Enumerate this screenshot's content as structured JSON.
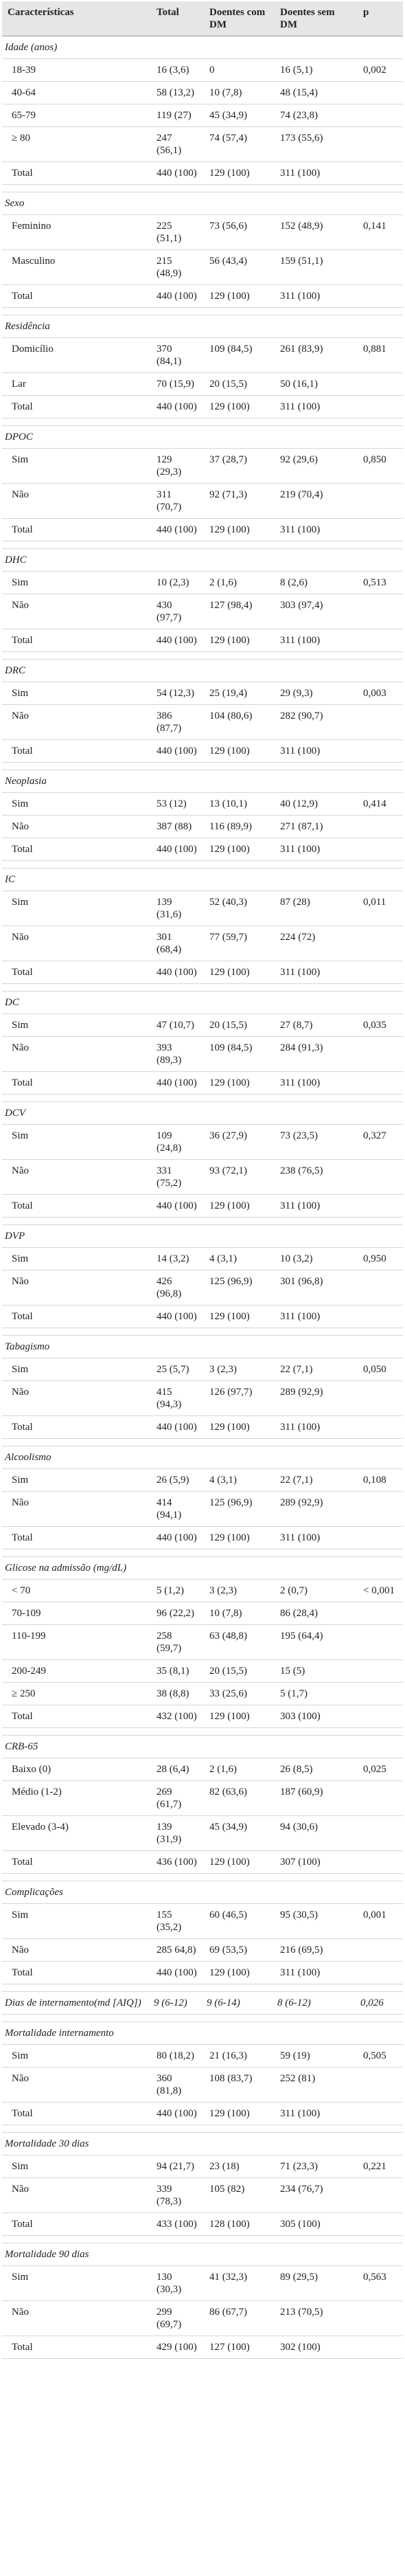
{
  "table": {
    "header": [
      "Características",
      "Total",
      "Doentes com DM",
      "Doentes sem DM",
      "p"
    ],
    "sections": [
      {
        "title": "Idade (anos)",
        "rows": [
          [
            "18-39",
            "16 (3,6)",
            "0",
            "16 (5,1)",
            "0,002"
          ],
          [
            "40-64",
            "58 (13,2)",
            "10 (7,8)",
            "48 (15,4)"
          ],
          [
            "65-79",
            "119 (27)",
            "45 (34,9)",
            "74 (23,8)"
          ],
          [
            "≥ 80",
            "247 (56,1)",
            "74 (57,4)",
            "173 (55,6)"
          ],
          [
            "Total",
            "440 (100)",
            "129 (100)",
            "311 (100)"
          ]
        ]
      },
      {
        "title": "Sexo",
        "rows": [
          [
            "Feminino",
            "225 (51,1)",
            "73 (56,6)",
            "152 (48,9)",
            "0,141"
          ],
          [
            "Masculino",
            "215 (48,9)",
            "56 (43,4)",
            "159 (51,1)"
          ],
          [
            "Total",
            "440 (100)",
            "129 (100)",
            "311 (100)"
          ]
        ]
      },
      {
        "title": "Residência",
        "rows": [
          [
            "Domicílio",
            "370 (84,1)",
            "109 (84,5)",
            "261 (83,9)",
            "0,881"
          ],
          [
            "Lar",
            "70 (15,9)",
            "20 (15,5)",
            "50 (16,1)"
          ],
          [
            "Total",
            "440 (100)",
            "129 (100)",
            "311 (100)"
          ]
        ]
      },
      {
        "title": "DPOC",
        "rows": [
          [
            "Sim",
            "129 (29,3)",
            "37 (28,7)",
            "92 (29,6)",
            "0,850"
          ],
          [
            "Não",
            "311 (70,7)",
            "92 (71,3)",
            "219 (70,4)"
          ],
          [
            "Total",
            "440 (100)",
            "129 (100)",
            "311 (100)"
          ]
        ]
      },
      {
        "title": "DHC",
        "rows": [
          [
            "Sim",
            "10 (2,3)",
            "2 (1,6)",
            "8 (2,6)",
            "0,513"
          ],
          [
            "Não",
            "430 (97,7)",
            "127 (98,4)",
            "303 (97,4)"
          ],
          [
            "Total",
            "440 (100)",
            "129 (100)",
            "311 (100)"
          ]
        ]
      },
      {
        "title": "DRC",
        "rows": [
          [
            "Sim",
            "54 (12,3)",
            "25 (19,4)",
            "29 (9,3)",
            "0,003"
          ],
          [
            "Não",
            "386 (87,7)",
            "104 (80,6)",
            "282 (90,7)"
          ],
          [
            "Total",
            "440 (100)",
            "129 (100)",
            "311 (100)"
          ]
        ]
      },
      {
        "title": "Neoplasia",
        "rows": [
          [
            "Sim",
            "53 (12)",
            "13 (10,1)",
            "40 (12,9)",
            "0,414"
          ],
          [
            "Não",
            "387 (88)",
            "116 (89,9)",
            "271 (87,1)"
          ],
          [
            "Total",
            "440 (100)",
            "129 (100)",
            "311 (100)"
          ]
        ]
      },
      {
        "title": "IC",
        "rows": [
          [
            "Sim",
            "139 (31,6)",
            "52 (40,3)",
            "87 (28)",
            "0,011"
          ],
          [
            "Não",
            "301 (68,4)",
            "77 (59,7)",
            "224 (72)"
          ],
          [
            "Total",
            "440 (100)",
            "129 (100)",
            "311 (100)"
          ]
        ]
      },
      {
        "title": "DC",
        "rows": [
          [
            "Sim",
            "47 (10,7)",
            "20 (15,5)",
            "27 (8,7)",
            "0,035"
          ],
          [
            "Não",
            "393 (89,3)",
            "109 (84,5)",
            "284 (91,3)"
          ],
          [
            "Total",
            "440 (100)",
            "129 (100)",
            "311 (100)"
          ]
        ]
      },
      {
        "title": "DCV",
        "rows": [
          [
            "Sim",
            "109 (24,8)",
            "36 (27,9)",
            "73 (23,5)",
            "0,327"
          ],
          [
            "Não",
            "331 (75,2)",
            "93 (72,1)",
            "238 (76,5)"
          ],
          [
            "Total",
            "440 (100)",
            "129 (100)",
            "311 (100)"
          ]
        ]
      },
      {
        "title": "DVP",
        "rows": [
          [
            "Sim",
            "14 (3,2)",
            "4 (3,1)",
            "10 (3,2)",
            "0,950"
          ],
          [
            "Não",
            "426 (96,8)",
            "125 (96,9)",
            "301 (96,8)"
          ],
          [
            "Total",
            "440 (100)",
            "129 (100)",
            "311 (100)"
          ]
        ]
      },
      {
        "title": "Tabagismo",
        "rows": [
          [
            "Sim",
            "25 (5,7)",
            "3 (2,3)",
            "22 (7,1)",
            "0,050"
          ],
          [
            "Não",
            "415 (94,3)",
            "126 (97,7)",
            "289 (92,9)"
          ],
          [
            "Total",
            "440 (100)",
            "129 (100)",
            "311 (100)"
          ]
        ]
      },
      {
        "title": "Alcoolismo",
        "rows": [
          [
            "Sim",
            "26 (5,9)",
            "4 (3,1)",
            "22 (7,1)",
            "0,108"
          ],
          [
            "Não",
            "414 (94,1)",
            "125 (96,9)",
            "289 (92,9)"
          ],
          [
            "Total",
            "440 (100)",
            "129 (100)",
            "311 (100)"
          ]
        ]
      },
      {
        "title": "Glicose na admissão (mg/dL)",
        "rows": [
          [
            "< 70",
            "5 (1,2)",
            "3 (2,3)",
            "2 (0,7)",
            "< 0,001"
          ],
          [
            "70-109",
            "96 (22,2)",
            "10 (7,8)",
            "86 (28,4)"
          ],
          [
            "110-199",
            "258 (59,7)",
            "63 (48,8)",
            "195 (64,4)"
          ],
          [
            "200-249",
            "35 (8,1)",
            "20 (15,5)",
            "15 (5)"
          ],
          [
            "≥ 250",
            "38 (8,8)",
            "33 (25,6)",
            "5 (1,7)"
          ],
          [
            "Total",
            "432 (100)",
            "129 (100)",
            "303 (100)"
          ]
        ]
      },
      {
        "title": "CRB-65",
        "rows": [
          [
            "Baixo (0)",
            "28 (6,4)",
            "2 (1,6)",
            "26 (8,5)",
            "0,025"
          ],
          [
            "Médio (1-2)",
            "269 (61,7)",
            "82 (63,6)",
            "187 (60,9)"
          ],
          [
            "Elevado (3-4)",
            "139 (31,9)",
            "45 (34,9)",
            "94 (30,6)"
          ],
          [
            "Total",
            "436 (100)",
            "129 (100)",
            "307 (100)"
          ]
        ]
      },
      {
        "title": "Complicações",
        "rows": [
          [
            "Sim",
            "155 (35,2)",
            "60 (46,5)",
            "95 (30,5)",
            "0,001"
          ],
          [
            "Não",
            "285 64,8)",
            "69 (53,5)",
            "216 (69,5)"
          ],
          [
            "Total",
            "440 (100)",
            "129 (100)",
            "311 (100)"
          ]
        ]
      },
      {
        "title": "Dias de internamento(md [AIQ])",
        "cells": [
          "9 (6-12)",
          "9 (6-14)",
          "8 (6-12)",
          "0,026"
        ]
      },
      {
        "title": "Mortalidade internamento",
        "rows": [
          [
            "Sim",
            "80 (18,2)",
            "21 (16,3)",
            "59 (19)",
            "0,505"
          ],
          [
            "Não",
            "360 (81,8)",
            "108 (83,7)",
            "252 (81)"
          ],
          [
            "Total",
            "440 (100)",
            "129 (100)",
            "311 (100)"
          ]
        ]
      },
      {
        "title": "Mortalidade 30 dias",
        "rows": [
          [
            "Sim",
            "94 (21,7)",
            "23 (18)",
            "71 (23,3)",
            "0,221"
          ],
          [
            "Não",
            "339 (78,3)",
            "105 (82)",
            "234 (76,7)"
          ],
          [
            "Total",
            "433 (100)",
            "128 (100)",
            "305 (100)"
          ]
        ]
      },
      {
        "title": "Mortalidade 90 dias",
        "rows": [
          [
            "Sim",
            "130 (30,3)",
            "41 (32,3)",
            "89 (29,5)",
            "0,563"
          ],
          [
            "Não",
            "299 (69,7)",
            "86 (67,7)",
            "213 (70,5)"
          ],
          [
            "Total",
            "429 (100)",
            "127 (100)",
            "302 (100)"
          ]
        ]
      }
    ]
  }
}
